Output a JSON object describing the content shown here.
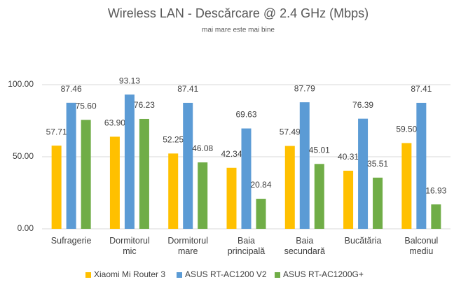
{
  "chart_data": {
    "type": "bar",
    "title": "Wireless LAN - Descărcare @ 2.4 GHz (Mbps)",
    "subtitle": "mai mare este mai bine",
    "categories": [
      "Sufragerie",
      "Dormitorul mic",
      "Dormitorul mare",
      "Baia principală",
      "Baia secundară",
      "Bucătăria",
      "Balconul mediu"
    ],
    "series": [
      {
        "name": "Xiaomi Mi Router 3",
        "color": "#ffc000",
        "values": [
          57.71,
          63.9,
          52.25,
          42.34,
          57.49,
          40.31,
          59.5
        ],
        "value_labels": [
          "57.71",
          "63.90",
          "52.25",
          "42.34",
          "57.49",
          "40.31",
          "59.50"
        ]
      },
      {
        "name": "ASUS RT-AC1200 V2",
        "color": "#5b9bd5",
        "values": [
          87.46,
          93.13,
          87.41,
          69.63,
          87.79,
          76.39,
          87.41
        ],
        "value_labels": [
          "87.46",
          "93.13",
          "87.41",
          "69.63",
          "87.79",
          "76.39",
          "87.41"
        ]
      },
      {
        "name": "ASUS RT-AC1200G+",
        "color": "#70ad47",
        "values": [
          75.6,
          76.23,
          46.08,
          20.84,
          45.01,
          35.51,
          16.93
        ],
        "value_labels": [
          "75.60",
          "76.23",
          "46.08",
          "20.84",
          "45.01",
          "35.51",
          "16.93"
        ]
      }
    ],
    "ylim": [
      0,
      100
    ],
    "yticks": [
      {
        "value": 0,
        "label": "0.00"
      },
      {
        "value": 50,
        "label": "50.00"
      },
      {
        "value": 100,
        "label": "100.00"
      }
    ],
    "grid": true,
    "legend": "bottom"
  }
}
